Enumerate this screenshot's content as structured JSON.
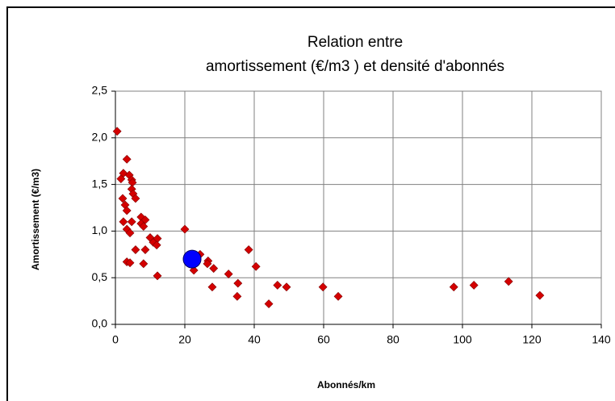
{
  "chart_data": {
    "type": "scatter",
    "title": [
      "Relation entre",
      "amortissement (€/m3 ) et densité d'abonnés"
    ],
    "x_label": "Abonnés/km",
    "y_label": "Amortissement  (€/m3)",
    "xlim": [
      0,
      140
    ],
    "xticks": [
      0,
      20,
      40,
      60,
      80,
      100,
      120,
      140
    ],
    "ylim": [
      0,
      2.5
    ],
    "yticks": [
      {
        "value": 0,
        "label": "0,0"
      },
      {
        "value": 0.5,
        "label": "0,5"
      },
      {
        "value": 1,
        "label": "1,0"
      },
      {
        "value": 1.5,
        "label": "1,5"
      },
      {
        "value": 2,
        "label": "2,0"
      },
      {
        "value": 2.5,
        "label": "2,5"
      }
    ],
    "grid": true,
    "series": [
      {
        "color": "#d40000",
        "marker": "diamond",
        "x": [
          0.5,
          2.3,
          1.6,
          3.3,
          4.0,
          4.7,
          4.9,
          4.7,
          5.1,
          5.8,
          2.1,
          2.8,
          3.3,
          2.3,
          4.7,
          3.3,
          4.2,
          3.3,
          4.2,
          7.4,
          8.6,
          7.4,
          8.1,
          10.0,
          10.9,
          12.1,
          11.9,
          8.6,
          5.8,
          8.1,
          12.1,
          20.0,
          24.4,
          22.6,
          26.7,
          26.5,
          28.3,
          27.9,
          32.6,
          35.3,
          35.1,
          38.4,
          40.5,
          44.2,
          46.7,
          49.3,
          59.8,
          64.2,
          97.5,
          103.3,
          113.3,
          122.3
        ],
        "y": [
          2.07,
          1.62,
          1.56,
          1.77,
          1.6,
          1.55,
          1.52,
          1.45,
          1.4,
          1.35,
          1.35,
          1.28,
          1.22,
          1.1,
          1.1,
          1.02,
          0.98,
          0.67,
          0.66,
          1.15,
          1.12,
          1.08,
          1.05,
          0.93,
          0.88,
          0.92,
          0.85,
          0.8,
          0.8,
          0.65,
          0.52,
          1.02,
          0.75,
          0.58,
          0.68,
          0.65,
          0.6,
          0.4,
          0.54,
          0.44,
          0.3,
          0.8,
          0.62,
          0.22,
          0.42,
          0.4,
          0.4,
          0.3,
          0.4,
          0.42,
          0.46,
          0.31
        ]
      },
      {
        "color": "#0000ff",
        "marker": "circle",
        "x": [
          22.1
        ],
        "y": [
          0.7
        ]
      }
    ]
  }
}
